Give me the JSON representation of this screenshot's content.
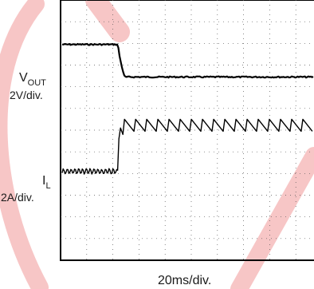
{
  "chart_data": {
    "type": "line",
    "title": "",
    "xlabel": "20ms/div.",
    "x_divisions": 10,
    "y_divisions": 12,
    "grid": true,
    "series": [
      {
        "name": "VOUT",
        "scale_label": "2V/div.",
        "color": "#000000",
        "shape": "step-down",
        "high_level_div": 2.05,
        "low_level_div": 3.55,
        "step_at_div": 2.2,
        "settle_at_div": 2.45
      },
      {
        "name": "IL",
        "scale_label": "2A/div.",
        "color": "#000000",
        "shape": "ripple-then-sawtooth",
        "pre_level_div": 7.9,
        "pre_ripple_amplitude_div": 0.2,
        "step_at_div": 2.2,
        "post_top_div": 5.5,
        "post_bottom_div": 6.05,
        "sawtooth_cycles": 17
      }
    ]
  },
  "labels": {
    "vout_main": "V",
    "vout_sub": "OUT",
    "vout_scale": "2V/div.",
    "il_main": "I",
    "il_sub": "L",
    "il_scale": "2A/div.",
    "xlabel": "20ms/div."
  },
  "watermark_color": "#f7c6c6"
}
